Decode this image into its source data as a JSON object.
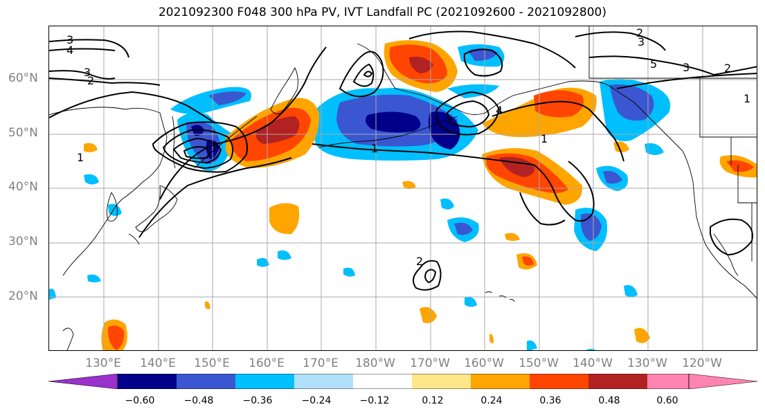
{
  "title": "2021092300 F048 300 hPa PV, IVT Landfall PC (2021092600 - 2021092800)",
  "lat_labels": [
    "60°N",
    "50°N",
    "40°N",
    "30°N",
    "20°N"
  ],
  "lon_labels": [
    "130°E",
    "140°E",
    "150°E",
    "160°E",
    "170°E",
    "180°W",
    "170°W",
    "160°W",
    "150°W",
    "140°W",
    "130°W",
    "120°W"
  ],
  "colorbar": {
    "tick_labels": [
      "−0.60",
      "−0.48",
      "−0.36",
      "−0.24",
      "−0.12",
      "0.12",
      "0.24",
      "0.36",
      "0.48",
      "0.60"
    ],
    "colors": [
      "#9932cc",
      "#00008b",
      "#3a56d0",
      "#00bfff",
      "#b0e0fa",
      "#ffffff",
      "#ffe78a",
      "#ffa500",
      "#ff4500",
      "#b22222",
      "#ff85b0"
    ]
  },
  "contour_labels": [
    "3",
    "4",
    "3",
    "2",
    "2",
    "3",
    "5",
    "3",
    "2",
    "1",
    "4",
    "1",
    "2",
    "1",
    "1"
  ],
  "colors": {
    "gridline": "#a9a9a9",
    "coastline": "#000000",
    "contour": "#000000"
  }
}
